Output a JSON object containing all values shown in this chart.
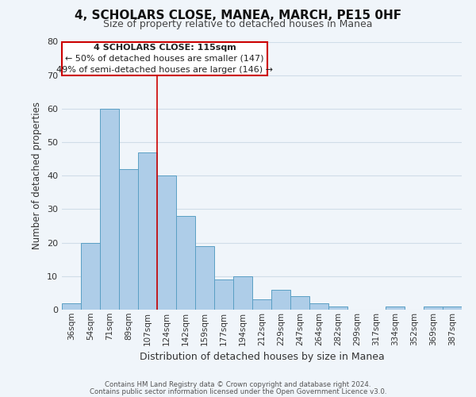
{
  "title": "4, SCHOLARS CLOSE, MANEA, MARCH, PE15 0HF",
  "subtitle": "Size of property relative to detached houses in Manea",
  "bar_color": "#aecde8",
  "bar_edge_color": "#5a9fc4",
  "bin_labels": [
    "36sqm",
    "54sqm",
    "71sqm",
    "89sqm",
    "107sqm",
    "124sqm",
    "142sqm",
    "159sqm",
    "177sqm",
    "194sqm",
    "212sqm",
    "229sqm",
    "247sqm",
    "264sqm",
    "282sqm",
    "299sqm",
    "317sqm",
    "334sqm",
    "352sqm",
    "369sqm",
    "387sqm"
  ],
  "bar_heights": [
    2,
    20,
    60,
    42,
    47,
    40,
    28,
    19,
    9,
    10,
    3,
    6,
    4,
    2,
    1,
    0,
    0,
    1,
    0,
    1,
    1
  ],
  "ylim": [
    0,
    80
  ],
  "yticks": [
    0,
    10,
    20,
    30,
    40,
    50,
    60,
    70,
    80
  ],
  "ylabel": "Number of detached properties",
  "xlabel": "Distribution of detached houses by size in Manea",
  "vline_bar_index": 5,
  "annotation_line1": "4 SCHOLARS CLOSE: 115sqm",
  "annotation_line2": "← 50% of detached houses are smaller (147)",
  "annotation_line3": "49% of semi-detached houses are larger (146) →",
  "annotation_box_color": "#ffffff",
  "annotation_box_edge": "#cc0000",
  "vline_color": "#cc0000",
  "footer1": "Contains HM Land Registry data © Crown copyright and database right 2024.",
  "footer2": "Contains public sector information licensed under the Open Government Licence v3.0.",
  "grid_color": "#d0dde8",
  "background_color": "#f0f5fa",
  "title_fontsize": 11,
  "subtitle_fontsize": 9
}
